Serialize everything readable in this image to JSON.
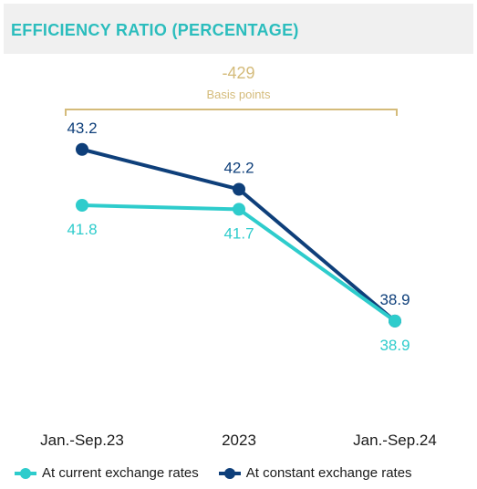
{
  "header": {
    "title": "EFFICIENCY RATIO (PERCENTAGE)"
  },
  "annotation": {
    "value": "-429",
    "label": "Basis points"
  },
  "colors": {
    "title": "#2bbdbd",
    "title_bg": "#f0f0f0",
    "annotation": "#d4bb7a",
    "current": "#2ecccc",
    "constant": "#0e3f7a",
    "axis_text": "#1a1a1a"
  },
  "chart_data": {
    "type": "line",
    "title": "EFFICIENCY RATIO (PERCENTAGE)",
    "categories": [
      "Jan.-Sep.23",
      "2023",
      "Jan.-Sep.24"
    ],
    "series": [
      {
        "name": "At current exchange rates",
        "values": [
          41.8,
          41.7,
          38.9
        ],
        "labels": [
          "41.8",
          "41.7",
          "38.9"
        ],
        "color": "#2ecccc"
      },
      {
        "name": "At constant exchange rates",
        "values": [
          43.2,
          42.2,
          38.9
        ],
        "labels": [
          "43.2",
          "42.2",
          "38.9"
        ],
        "color": "#0e3f7a"
      }
    ],
    "ylim": [
      37,
      45
    ],
    "grid": false,
    "legend": "bottom"
  }
}
